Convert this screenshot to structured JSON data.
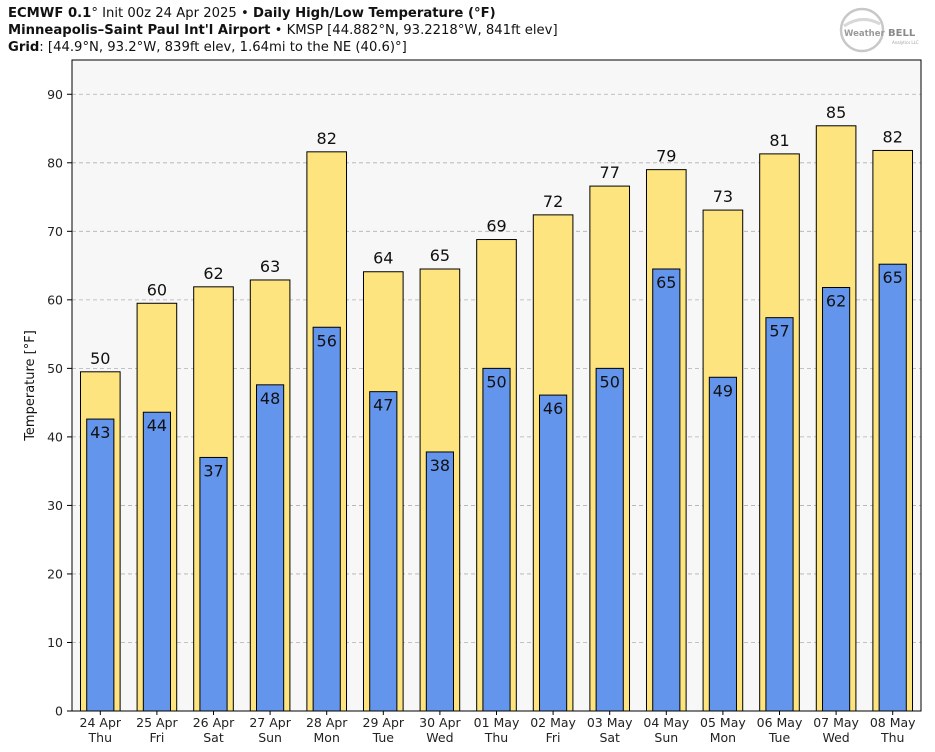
{
  "header": {
    "line1_model": "ECMWF 0.1",
    "line1_init": "° Init 00z 24 Apr 2025",
    "line1_sep": " • ",
    "line1_product": "Daily High/Low Temperature (°F)",
    "line2_station": "Minneapolis–Saint Paul Int'l Airport",
    "line2_info": " • KMSP [44.882°N, 93.2218°W, 841ft elev]",
    "line3_label": "Grid",
    "line3_info": ": [44.9°N, 93.2°W, 839ft elev, 1.64mi to the NE (40.6)°]"
  },
  "logo": {
    "text_left": "Weather",
    "text_right": "BELL",
    "tagline": "Analytics LLC"
  },
  "colors": {
    "high": "#fde47f",
    "low": "#6495ed",
    "plot_bg": "#f7f7f7",
    "grid": "#b0b0b0",
    "outline": "#000000"
  },
  "chart_data": {
    "type": "bar",
    "title": "Daily High/Low Temperature (°F)",
    "xlabel": "",
    "ylabel": "Temperature [°F]",
    "ylim": [
      0,
      95
    ],
    "yticks": [
      0,
      10,
      20,
      30,
      40,
      50,
      60,
      70,
      80,
      90
    ],
    "grid": true,
    "categories": [
      {
        "date": "24 Apr",
        "day": "Thu"
      },
      {
        "date": "25 Apr",
        "day": "Fri"
      },
      {
        "date": "26 Apr",
        "day": "Sat"
      },
      {
        "date": "27 Apr",
        "day": "Sun"
      },
      {
        "date": "28 Apr",
        "day": "Mon"
      },
      {
        "date": "29 Apr",
        "day": "Tue"
      },
      {
        "date": "30 Apr",
        "day": "Wed"
      },
      {
        "date": "01 May",
        "day": "Thu"
      },
      {
        "date": "02 May",
        "day": "Fri"
      },
      {
        "date": "03 May",
        "day": "Sat"
      },
      {
        "date": "04 May",
        "day": "Sun"
      },
      {
        "date": "05 May",
        "day": "Mon"
      },
      {
        "date": "06 May",
        "day": "Tue"
      },
      {
        "date": "07 May",
        "day": "Wed"
      },
      {
        "date": "08 May",
        "day": "Thu"
      }
    ],
    "series": [
      {
        "name": "High",
        "values": [
          49.5,
          59.5,
          61.9,
          62.9,
          81.6,
          64.1,
          64.5,
          68.8,
          72.4,
          76.6,
          79.0,
          73.1,
          81.3,
          85.4,
          81.8
        ],
        "labels": [
          "50",
          "60",
          "62",
          "63",
          "82",
          "64",
          "65",
          "69",
          "72",
          "77",
          "79",
          "73",
          "81",
          "85",
          "82"
        ]
      },
      {
        "name": "Low",
        "values": [
          42.6,
          43.6,
          37.0,
          47.6,
          56.0,
          46.6,
          37.8,
          50.0,
          46.1,
          50.0,
          64.5,
          48.7,
          57.4,
          61.8,
          65.2
        ],
        "labels": [
          "43",
          "44",
          "37",
          "48",
          "56",
          "47",
          "38",
          "50",
          "46",
          "50",
          "65",
          "49",
          "57",
          "62",
          "65"
        ]
      }
    ]
  }
}
